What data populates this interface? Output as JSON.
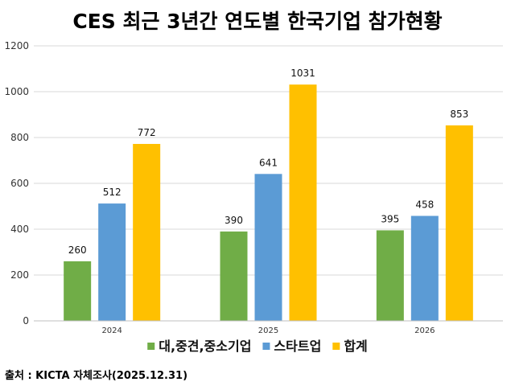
{
  "chart_data": {
    "type": "bar",
    "title": "CES 최근 3년간 연도별 한국기업 참가현황",
    "categories": [
      "2024",
      "2025",
      "2026"
    ],
    "series": [
      {
        "name": "대,중견,중소기업",
        "color": "#70AD47",
        "values": [
          260,
          390,
          395
        ]
      },
      {
        "name": "스타트업",
        "color": "#5B9BD5",
        "values": [
          512,
          641,
          458
        ]
      },
      {
        "name": "합계",
        "color": "#FFC000",
        "values": [
          772,
          1031,
          853
        ]
      }
    ],
    "ylim": [
      0,
      1200
    ],
    "yticks": [
      0,
      200,
      400,
      600,
      800,
      1000,
      1200
    ],
    "grid": true,
    "legend": "bottom"
  },
  "source": "출처 : KICTA 자체조사(2025.12.31)"
}
